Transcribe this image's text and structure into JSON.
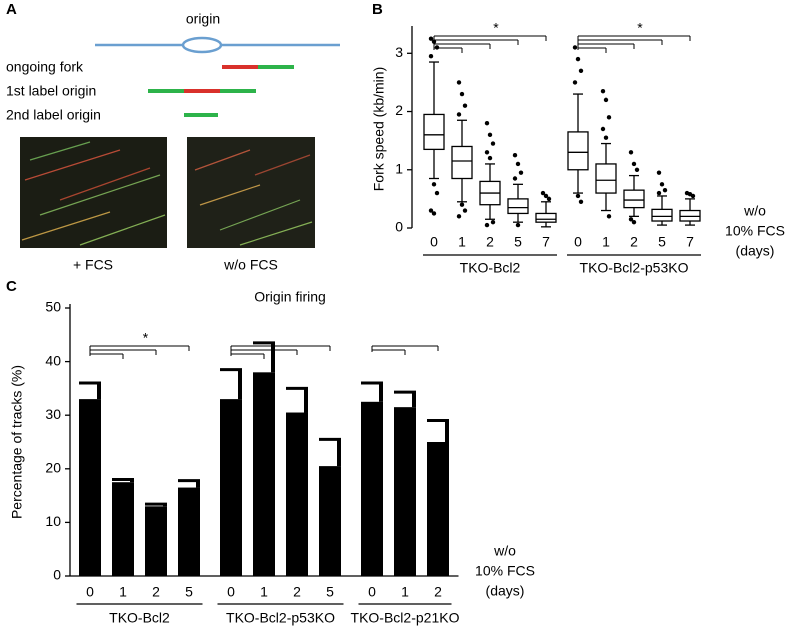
{
  "figure": {
    "panel_labels": [
      "A",
      "B",
      "C"
    ],
    "schematic": {
      "origin": "origin",
      "ongoing_fork": "ongoing fork",
      "first_label_origin": "1st label origin",
      "second_label_origin": "2nd label origin"
    },
    "images": [
      "+ FCS",
      "w/o FCS"
    ]
  },
  "chart_data": [
    {
      "type": "box",
      "ylabel": "Fork speed (kb/min)",
      "ylim": [
        0,
        3.4
      ],
      "yticks": [
        0,
        1,
        2,
        3
      ],
      "xnote": [
        "w/o",
        "10% FCS",
        "(days)"
      ],
      "significance": "*",
      "groups": [
        {
          "name": "TKO-Bcl2",
          "categories": [
            "0",
            "1",
            "2",
            "5",
            "7"
          ],
          "boxes": [
            {
              "low": 0.85,
              "q1": 1.35,
              "median": 1.6,
              "q3": 1.95,
              "high": 2.85,
              "outliers": [
                3.25,
                3.2,
                3.1,
                2.95,
                0.75,
                0.6,
                0.3,
                0.25
              ]
            },
            {
              "low": 0.45,
              "q1": 0.85,
              "median": 1.15,
              "q3": 1.4,
              "high": 1.85,
              "outliers": [
                2.5,
                2.3,
                2.1,
                1.95,
                0.4,
                0.3,
                0.2
              ]
            },
            {
              "low": 0.15,
              "q1": 0.4,
              "median": 0.6,
              "q3": 0.8,
              "high": 1.1,
              "outliers": [
                1.8,
                1.6,
                1.45,
                1.3,
                1.2,
                0.1,
                0.05
              ]
            },
            {
              "low": 0.1,
              "q1": 0.25,
              "median": 0.35,
              "q3": 0.5,
              "high": 0.75,
              "outliers": [
                1.25,
                1.1,
                0.95,
                0.85,
                0.05
              ]
            },
            {
              "low": 0.02,
              "q1": 0.1,
              "median": 0.15,
              "q3": 0.25,
              "high": 0.45,
              "outliers": [
                0.6,
                0.55,
                0.5
              ]
            }
          ]
        },
        {
          "name": "TKO-Bcl2-p53KO",
          "categories": [
            "0",
            "1",
            "2",
            "5",
            "7"
          ],
          "boxes": [
            {
              "low": 0.6,
              "q1": 1.0,
              "median": 1.3,
              "q3": 1.65,
              "high": 2.3,
              "outliers": [
                3.1,
                2.9,
                2.7,
                2.5,
                0.55,
                0.45
              ]
            },
            {
              "low": 0.3,
              "q1": 0.6,
              "median": 0.82,
              "q3": 1.1,
              "high": 1.45,
              "outliers": [
                2.35,
                2.2,
                1.9,
                1.7,
                1.55,
                0.2
              ]
            },
            {
              "low": 0.2,
              "q1": 0.35,
              "median": 0.48,
              "q3": 0.65,
              "high": 0.9,
              "outliers": [
                1.3,
                1.1,
                1.0,
                0.15,
                0.1
              ]
            },
            {
              "low": 0.05,
              "q1": 0.12,
              "median": 0.2,
              "q3": 0.32,
              "high": 0.55,
              "outliers": [
                0.95,
                0.75,
                0.65,
                0.6
              ]
            },
            {
              "low": 0.05,
              "q1": 0.12,
              "median": 0.2,
              "q3": 0.3,
              "high": 0.5,
              "outliers": [
                0.6,
                0.58,
                0.55
              ]
            }
          ]
        }
      ]
    },
    {
      "type": "bar",
      "title": "Origin firing",
      "ylabel": "Percentage of tracks (%)",
      "color": "#000000",
      "ylim": [
        0,
        50
      ],
      "yticks": [
        0,
        10,
        20,
        30,
        40,
        50
      ],
      "xnote": [
        "w/o",
        "10% FCS",
        "(days)"
      ],
      "significance": "*",
      "groups": [
        {
          "name": "TKO-Bcl2",
          "categories": [
            "0",
            "1",
            "2",
            "5"
          ],
          "values": [
            33,
            17.5,
            13,
            16.5
          ],
          "errors": [
            3,
            0.5,
            0.4,
            1.3
          ]
        },
        {
          "name": "TKO-Bcl2-p53KO",
          "categories": [
            "0",
            "1",
            "2",
            "5"
          ],
          "values": [
            33,
            38,
            30.5,
            20.5
          ],
          "errors": [
            5.5,
            5.5,
            4.5,
            5
          ]
        },
        {
          "name": "TKO-Bcl2-p21KO",
          "categories": [
            "0",
            "1",
            "2"
          ],
          "values": [
            32.5,
            31.5,
            25
          ],
          "errors": [
            3.5,
            2.8,
            4
          ]
        }
      ]
    }
  ]
}
